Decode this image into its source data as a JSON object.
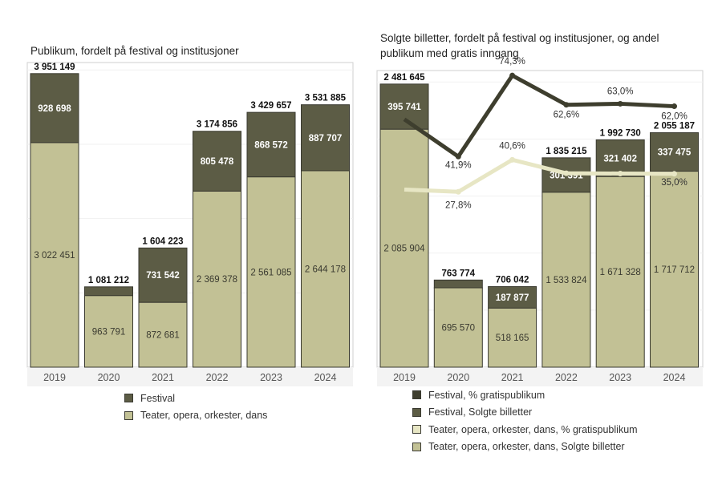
{
  "colors": {
    "festival": "#5c5c45",
    "teater": "#c2c195",
    "festival_pct": "#3e3e2e",
    "teater_pct": "#e7e6c4"
  },
  "chart_data": [
    {
      "type": "bar",
      "stacked": true,
      "title": "Publikum, fordelt på festival og institusjoner",
      "categories": [
        "2019",
        "2020",
        "2021",
        "2022",
        "2023",
        "2024"
      ],
      "totals": [
        "3 951 149",
        "1 081 212",
        "1 604 223",
        "3 174 856",
        "3 429 657",
        "3 531 885"
      ],
      "series": [
        {
          "name": "Teater, opera, orkester, dans",
          "values": [
            3022451,
            963791,
            872681,
            2369378,
            2561085,
            2644178
          ],
          "labels": [
            "3 022 451",
            "963 791",
            "872 681",
            "2 369 378",
            "2 561 085",
            "2 644 178"
          ]
        },
        {
          "name": "Festival",
          "values": [
            928698,
            117421,
            731542,
            805478,
            868572,
            887707
          ],
          "labels": [
            "928 698",
            "",
            "731 542",
            "805 478",
            "868 572",
            "887 707"
          ]
        }
      ],
      "legend": [
        "Festival",
        "Teater, opera, orkester, dans"
      ],
      "legend_position": "bottom",
      "ylim": [
        0,
        4100000
      ],
      "grid": true
    },
    {
      "type": "bar",
      "stacked": true,
      "title": "Solgte billetter,  fordelt på festival og institusjoner, og andel publikum med gratis inngang",
      "categories": [
        "2019",
        "2020",
        "2021",
        "2022",
        "2023",
        "2024"
      ],
      "totals": [
        "2 481 645",
        "763 774",
        "706 042",
        "1 835 215",
        "1 992 730",
        "2 055 187"
      ],
      "series": [
        {
          "name": "Teater, opera, orkester, dans, Solgte billetter",
          "values": [
            2085904,
            695570,
            518165,
            1533824,
            1671328,
            1717712
          ],
          "labels": [
            "2 085 904",
            "695 570",
            "518 165",
            "1 533 824",
            "1 671 328",
            "1 717 712"
          ]
        },
        {
          "name": "Festival, Solgte billetter",
          "values": [
            395741,
            68204,
            187877,
            301391,
            321402,
            337475
          ],
          "labels": [
            "395 741",
            "",
            "187 877",
            "301 391",
            "321 402",
            "337 475"
          ]
        }
      ],
      "line_series": [
        {
          "name": "Festival, % gratispublikum",
          "values": [
            56.8,
            41.9,
            74.3,
            62.6,
            63.0,
            62.0
          ],
          "labels": [
            "",
            "41,9%",
            "74,3%",
            "62,6%",
            "63,0%",
            "62,0%"
          ]
        },
        {
          "name": "Teater, opera, orkester, dans, % gratispublikum",
          "values": [
            28.7,
            27.8,
            40.6,
            35.2,
            35.1,
            35.0
          ],
          "labels": [
            "",
            "27,8%",
            "40,6%",
            "",
            "",
            "35,0%"
          ]
        }
      ],
      "legend": [
        "Festival, % gratispublikum",
        "Festival, Solgte billetter",
        "Teater, opera, orkester, dans, % gratispublikum",
        "Teater, opera, orkester, dans, Solgte billetter"
      ],
      "legend_position": "bottom",
      "ylim": [
        0,
        2600000
      ],
      "grid": true
    }
  ]
}
